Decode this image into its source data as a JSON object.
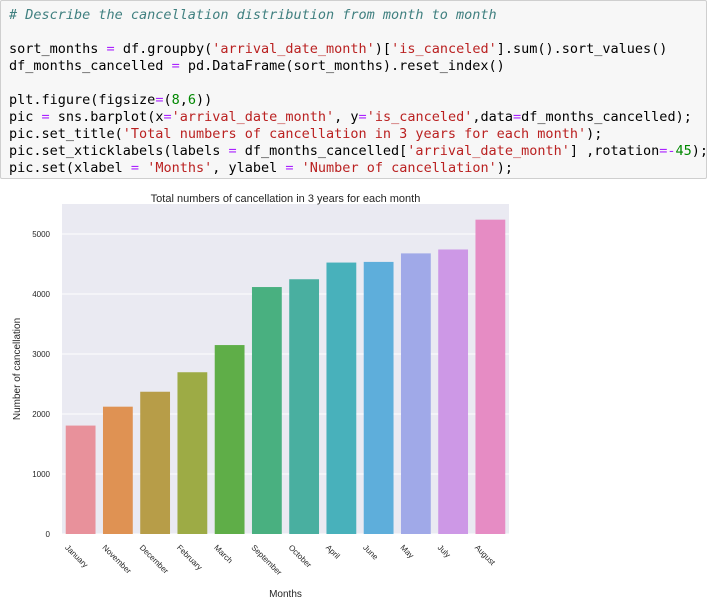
{
  "code_cell": {
    "lines": [
      [
        {
          "t": "# Describe the cancellation distribution from month to month",
          "c": "cm"
        }
      ],
      [],
      [
        {
          "t": "sort_months "
        },
        {
          "t": "=",
          "c": "op"
        },
        {
          "t": " df.groupby("
        },
        {
          "t": "'arrival_date_month'",
          "c": "st"
        },
        {
          "t": ")["
        },
        {
          "t": "'is_canceled'",
          "c": "st"
        },
        {
          "t": "].sum().sort_values()"
        }
      ],
      [
        {
          "t": "df_months_cancelled "
        },
        {
          "t": "=",
          "c": "op"
        },
        {
          "t": " pd.DataFrame(sort_months).reset_index()"
        }
      ],
      [],
      [
        {
          "t": "plt.figure(figsize"
        },
        {
          "t": "=",
          "c": "op"
        },
        {
          "t": "("
        },
        {
          "t": "8",
          "c": "nu"
        },
        {
          "t": ","
        },
        {
          "t": "6",
          "c": "nu"
        },
        {
          "t": "))"
        }
      ],
      [
        {
          "t": "pic "
        },
        {
          "t": "=",
          "c": "op"
        },
        {
          "t": " sns.barplot(x"
        },
        {
          "t": "=",
          "c": "op"
        },
        {
          "t": "'arrival_date_month'",
          "c": "st"
        },
        {
          "t": ", y"
        },
        {
          "t": "=",
          "c": "op"
        },
        {
          "t": "'is_canceled'",
          "c": "st"
        },
        {
          "t": ",data"
        },
        {
          "t": "=",
          "c": "op"
        },
        {
          "t": "df_months_cancelled);"
        }
      ],
      [
        {
          "t": "pic.set_title("
        },
        {
          "t": "'Total numbers of cancellation in 3 years for each month'",
          "c": "st"
        },
        {
          "t": ");"
        }
      ],
      [
        {
          "t": "pic.set_xticklabels(labels "
        },
        {
          "t": "=",
          "c": "op"
        },
        {
          "t": " df_months_cancelled["
        },
        {
          "t": "'arrival_date_month'",
          "c": "st"
        },
        {
          "t": "] ,rotation"
        },
        {
          "t": "=-",
          "c": "op"
        },
        {
          "t": "45",
          "c": "nu"
        },
        {
          "t": ");"
        }
      ],
      [
        {
          "t": "pic.set(xlabel "
        },
        {
          "t": "=",
          "c": "op"
        },
        {
          "t": " "
        },
        {
          "t": "'Months'",
          "c": "st"
        },
        {
          "t": ", ylabel "
        },
        {
          "t": "=",
          "c": "op"
        },
        {
          "t": " "
        },
        {
          "t": "'Number of cancellation'",
          "c": "st"
        },
        {
          "t": ");"
        }
      ]
    ]
  },
  "colors": {
    "cell_background": "#f7f7f7",
    "comment": "#408080",
    "operator": "#aa22ff",
    "string": "#ba2121",
    "number": "#008800",
    "chart_background": "#eaeaf2"
  },
  "chart_data": {
    "type": "bar",
    "title": "Total numbers of cancellation in 3 years for each month",
    "xlabel": "Months",
    "ylabel": "Number of cancellation",
    "categories": [
      "January",
      "November",
      "December",
      "February",
      "March",
      "September",
      "October",
      "April",
      "June",
      "May",
      "July",
      "August"
    ],
    "values": [
      1807,
      2122,
      2371,
      2696,
      3149,
      4116,
      4246,
      4524,
      4535,
      4677,
      4742,
      5239
    ],
    "colors": [
      "#e8919b",
      "#df9253",
      "#b79d48",
      "#9dab45",
      "#5fae48",
      "#49b080",
      "#49afa0",
      "#48b1bb",
      "#5eaedb",
      "#a0a9e8",
      "#cd98e6",
      "#e68cc4"
    ],
    "yticks": [
      0,
      1000,
      2000,
      3000,
      4000,
      5000
    ],
    "ylim": [
      0,
      5500
    ],
    "grid": true
  }
}
